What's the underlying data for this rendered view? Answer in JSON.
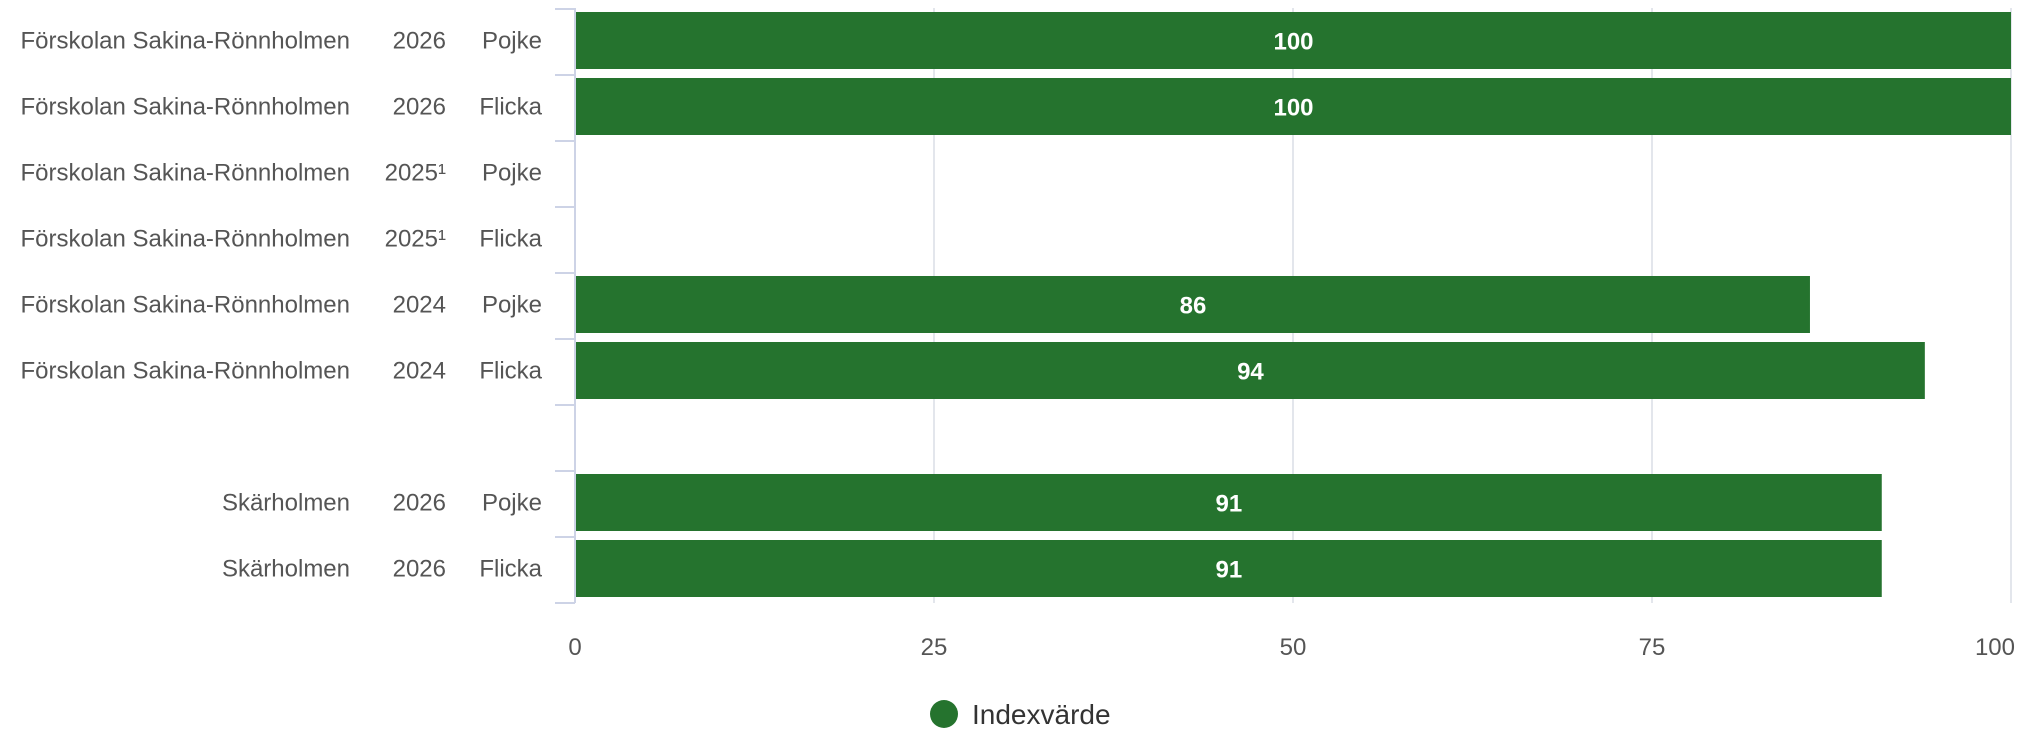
{
  "chart_data": {
    "type": "bar",
    "orientation": "horizontal",
    "category_columns": [
      [
        "Förskolan Sakina-Rönnholmen",
        "2026",
        "Pojke"
      ],
      [
        "Förskolan Sakina-Rönnholmen",
        "2026",
        "Flicka"
      ],
      [
        "Förskolan Sakina-Rönnholmen",
        "2025¹",
        "Pojke"
      ],
      [
        "Förskolan Sakina-Rönnholmen",
        "2025¹",
        "Flicka"
      ],
      [
        "Förskolan Sakina-Rönnholmen",
        "2024",
        "Pojke"
      ],
      [
        "Förskolan Sakina-Rönnholmen",
        "2024",
        "Flicka"
      ],
      [
        "",
        "",
        ""
      ],
      [
        "Skärholmen",
        "2026",
        "Pojke"
      ],
      [
        "Skärholmen",
        "2026",
        "Flicka"
      ]
    ],
    "series": [
      {
        "name": "Indexvärde",
        "color": "#25732e",
        "values": [
          100,
          100,
          null,
          null,
          86,
          94,
          null,
          91,
          91
        ],
        "labels": [
          "100",
          "100",
          "",
          "",
          "86",
          "94",
          "",
          "91",
          "91"
        ]
      }
    ],
    "x_ticks": [
      "0",
      "25",
      "50",
      "75",
      "100"
    ],
    "xlim": [
      0,
      100
    ],
    "grid": true,
    "legend": {
      "position": "bottom-center",
      "label": "Indexvärde",
      "color": "#25732e"
    },
    "colors": {
      "bar": "#25732e",
      "grid": "#e3e6ec",
      "axis": "#cdd3e6",
      "text": "#555555"
    }
  }
}
